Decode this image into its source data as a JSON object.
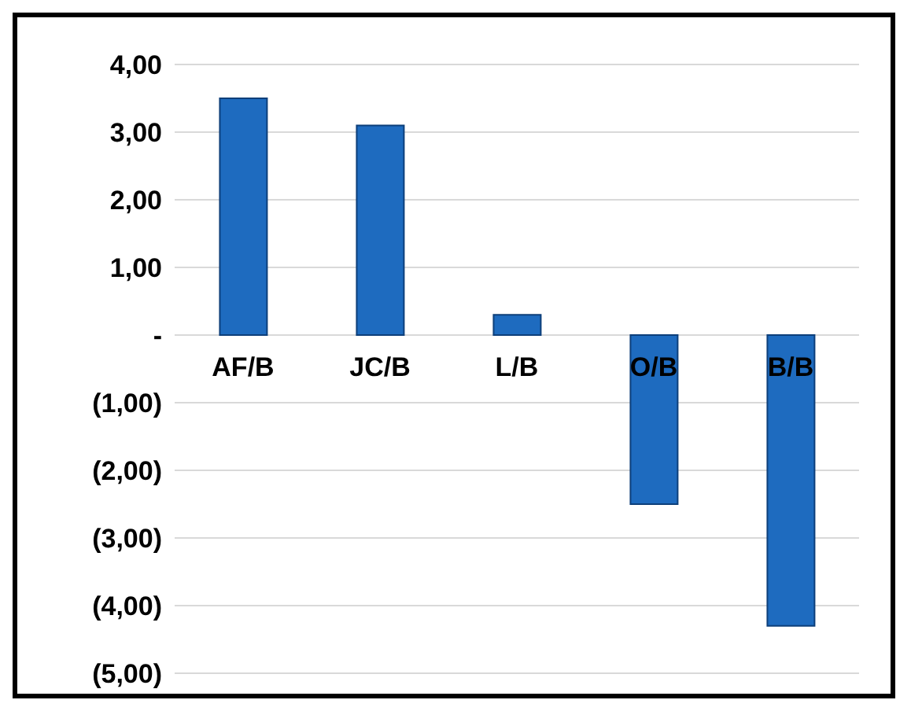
{
  "chart_data": {
    "type": "bar",
    "categories": [
      "AF/B",
      "JC/B",
      "L/B",
      "O/B",
      "B/B"
    ],
    "values": [
      3.5,
      3.1,
      0.3,
      -2.5,
      -4.3
    ],
    "color": "#1e6bbf",
    "ylim": [
      -5,
      4
    ],
    "yticks": [
      {
        "value": 4,
        "label": "4,00"
      },
      {
        "value": 3,
        "label": "3,00"
      },
      {
        "value": 2,
        "label": "2,00"
      },
      {
        "value": 1,
        "label": "1,00"
      },
      {
        "value": 0,
        "label": "-"
      },
      {
        "value": -1,
        "label": "(1,00)"
      },
      {
        "value": -2,
        "label": "(2,00)"
      },
      {
        "value": -3,
        "label": "(3,00)"
      },
      {
        "value": -4,
        "label": "(4,00)"
      },
      {
        "value": -5,
        "label": "(5,00)"
      }
    ],
    "grid": "y"
  }
}
